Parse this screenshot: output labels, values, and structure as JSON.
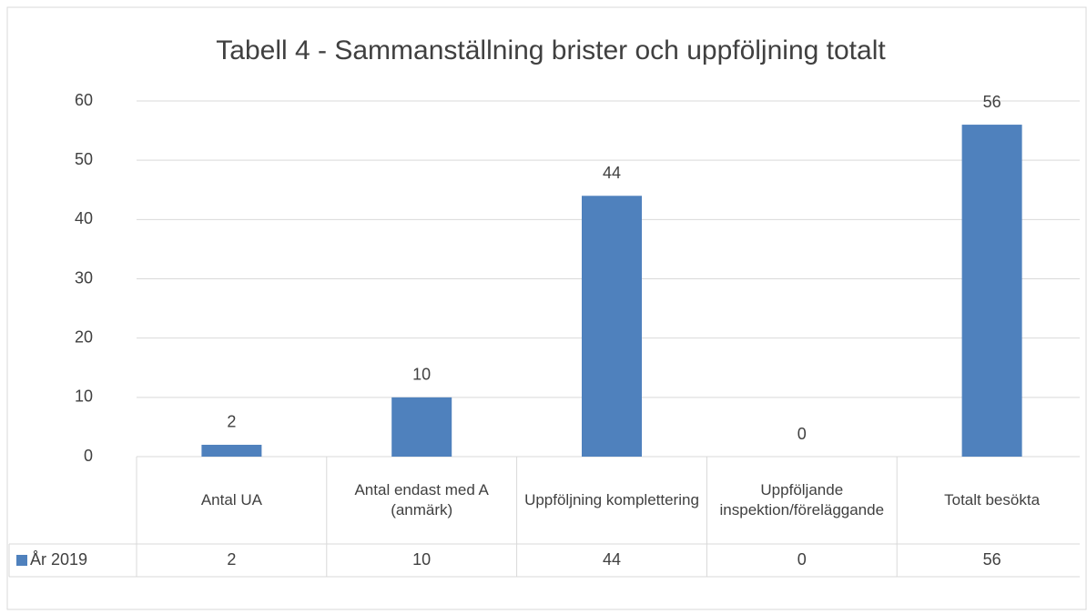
{
  "chart_data": {
    "type": "bar",
    "title": "Tabell 4 - Sammanställning brister och uppföljning totalt",
    "categories": [
      "Antal UA",
      "Antal endast med A (anmärk)",
      "Uppföljning komplettering",
      "Uppföljande inspektion/föreläggande",
      "Totalt besökta"
    ],
    "series": [
      {
        "name": "År 2019",
        "color": "#4f81bd",
        "values": [
          2,
          10,
          44,
          0,
          56
        ]
      }
    ],
    "ylim": [
      0,
      60
    ],
    "yticks": [
      0,
      10,
      20,
      30,
      40,
      50,
      60
    ],
    "grid": true,
    "data_table": true
  }
}
